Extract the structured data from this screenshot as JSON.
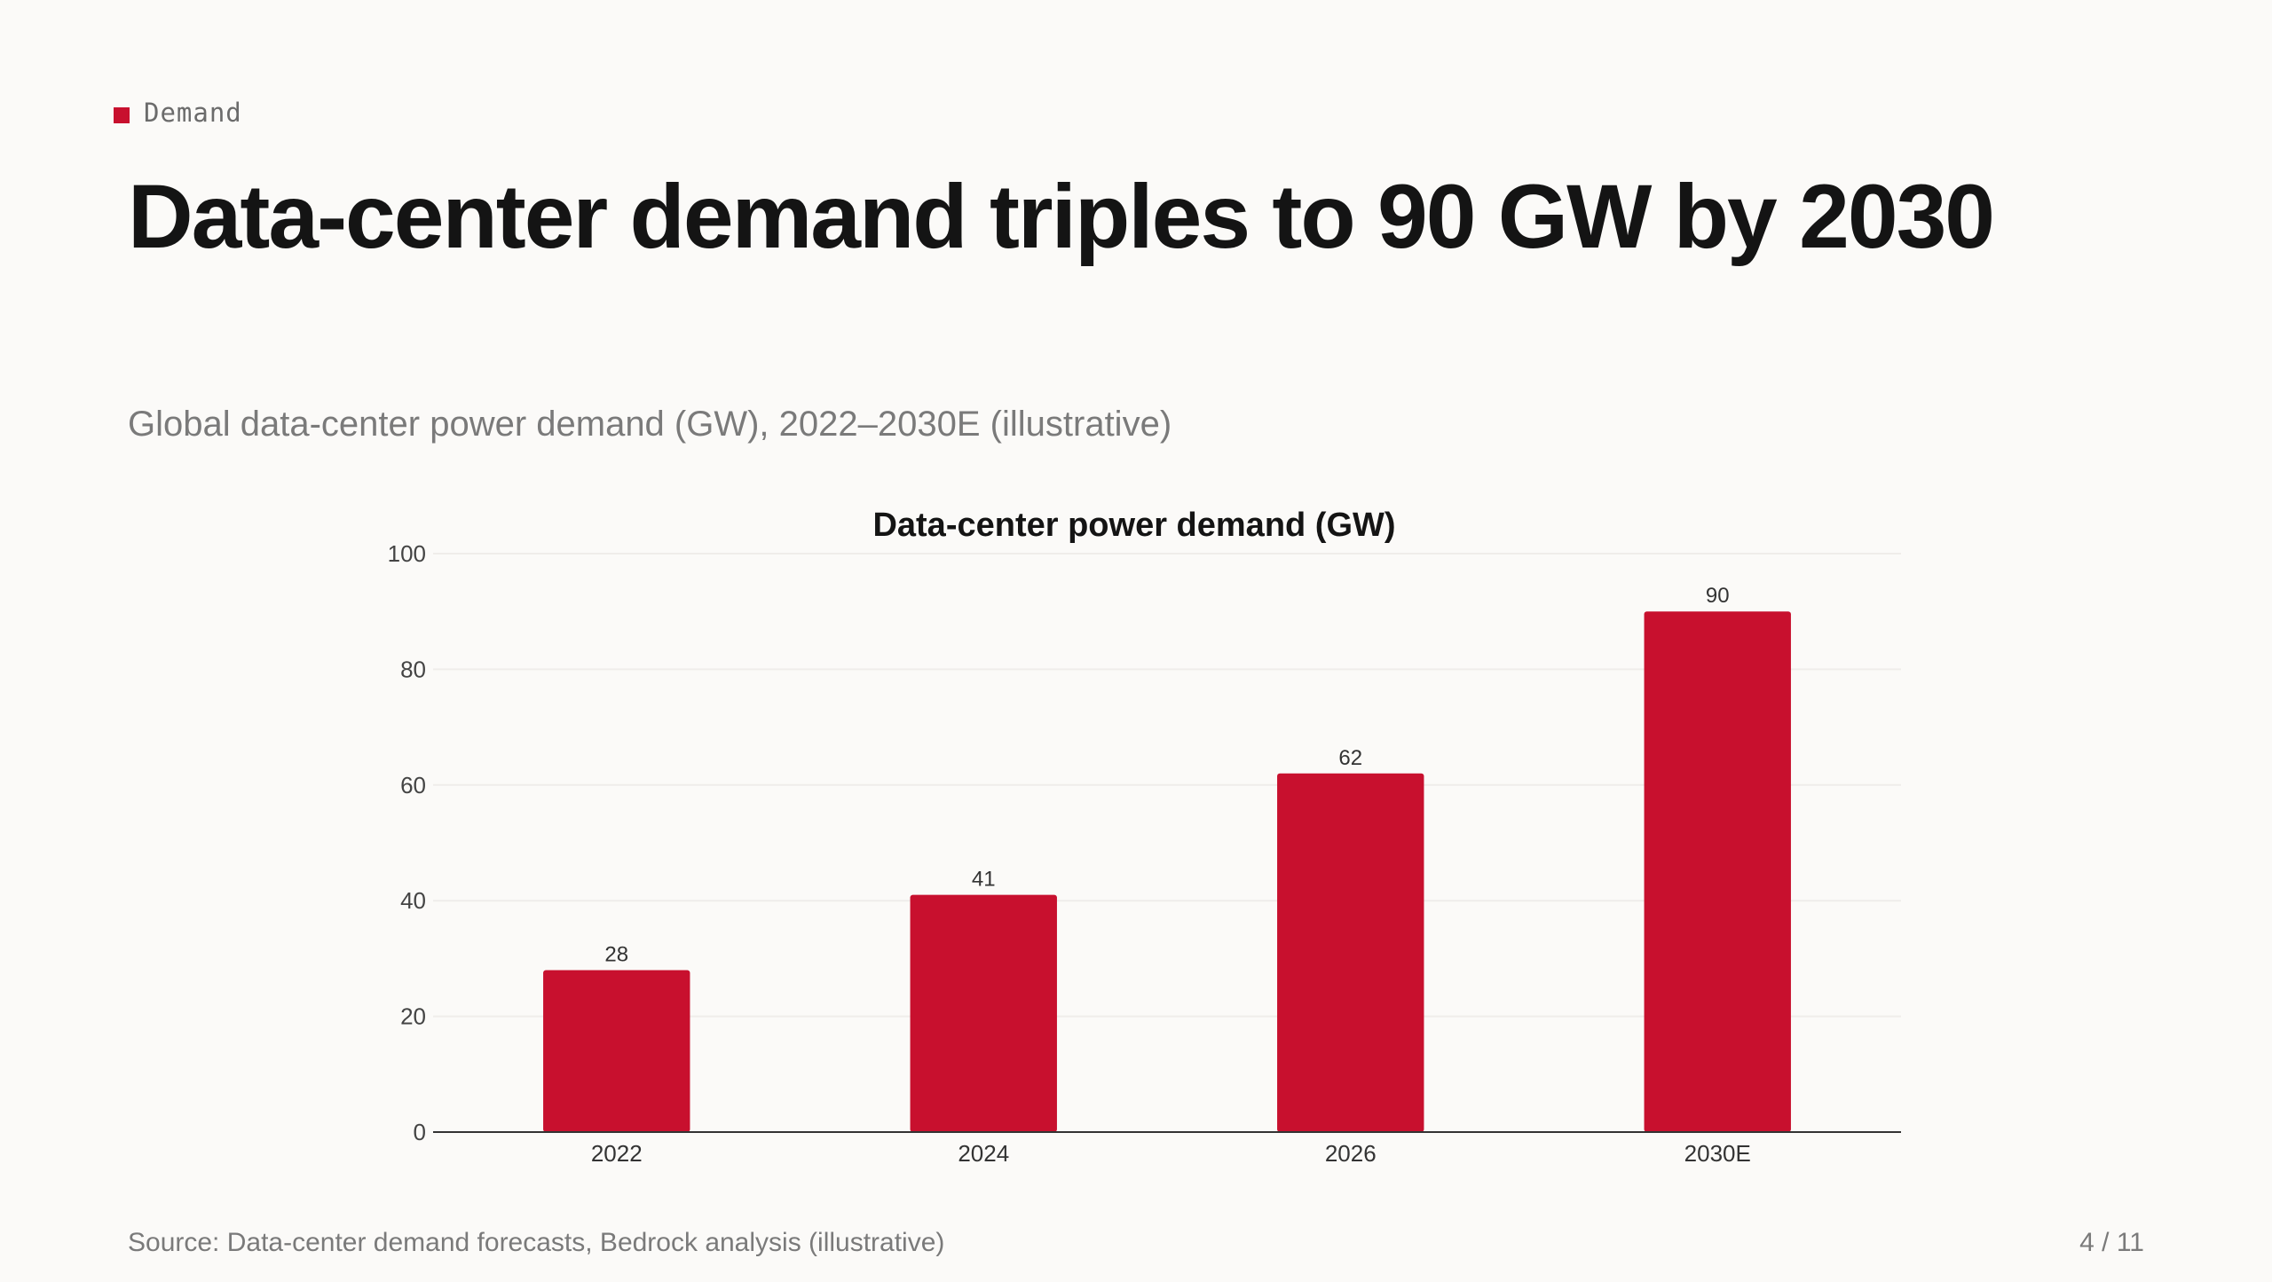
{
  "eyebrow": {
    "label": "Demand",
    "accent_color": "#c8102e"
  },
  "slide": {
    "title": "Data-center demand triples to 90 GW by 2030",
    "subtitle": "Global data-center power demand (GW), 2022–2030E (illustrative)"
  },
  "footer": {
    "source": "Source: Data-center demand forecasts, Bedrock analysis (illustrative)",
    "page": "4 / 11"
  },
  "chart_data": {
    "type": "bar",
    "title": "Data-center power demand (GW)",
    "xlabel": "",
    "ylabel": "",
    "categories": [
      "2022",
      "2024",
      "2026",
      "2030E"
    ],
    "values": [
      28,
      41,
      62,
      90
    ],
    "data_labels": [
      "28",
      "41",
      "62",
      "90"
    ],
    "ylim": [
      0,
      100
    ],
    "yticks": [
      0,
      20,
      40,
      60,
      80,
      100
    ],
    "grid": true,
    "legend": "none",
    "bar_color": "#c8102e"
  }
}
